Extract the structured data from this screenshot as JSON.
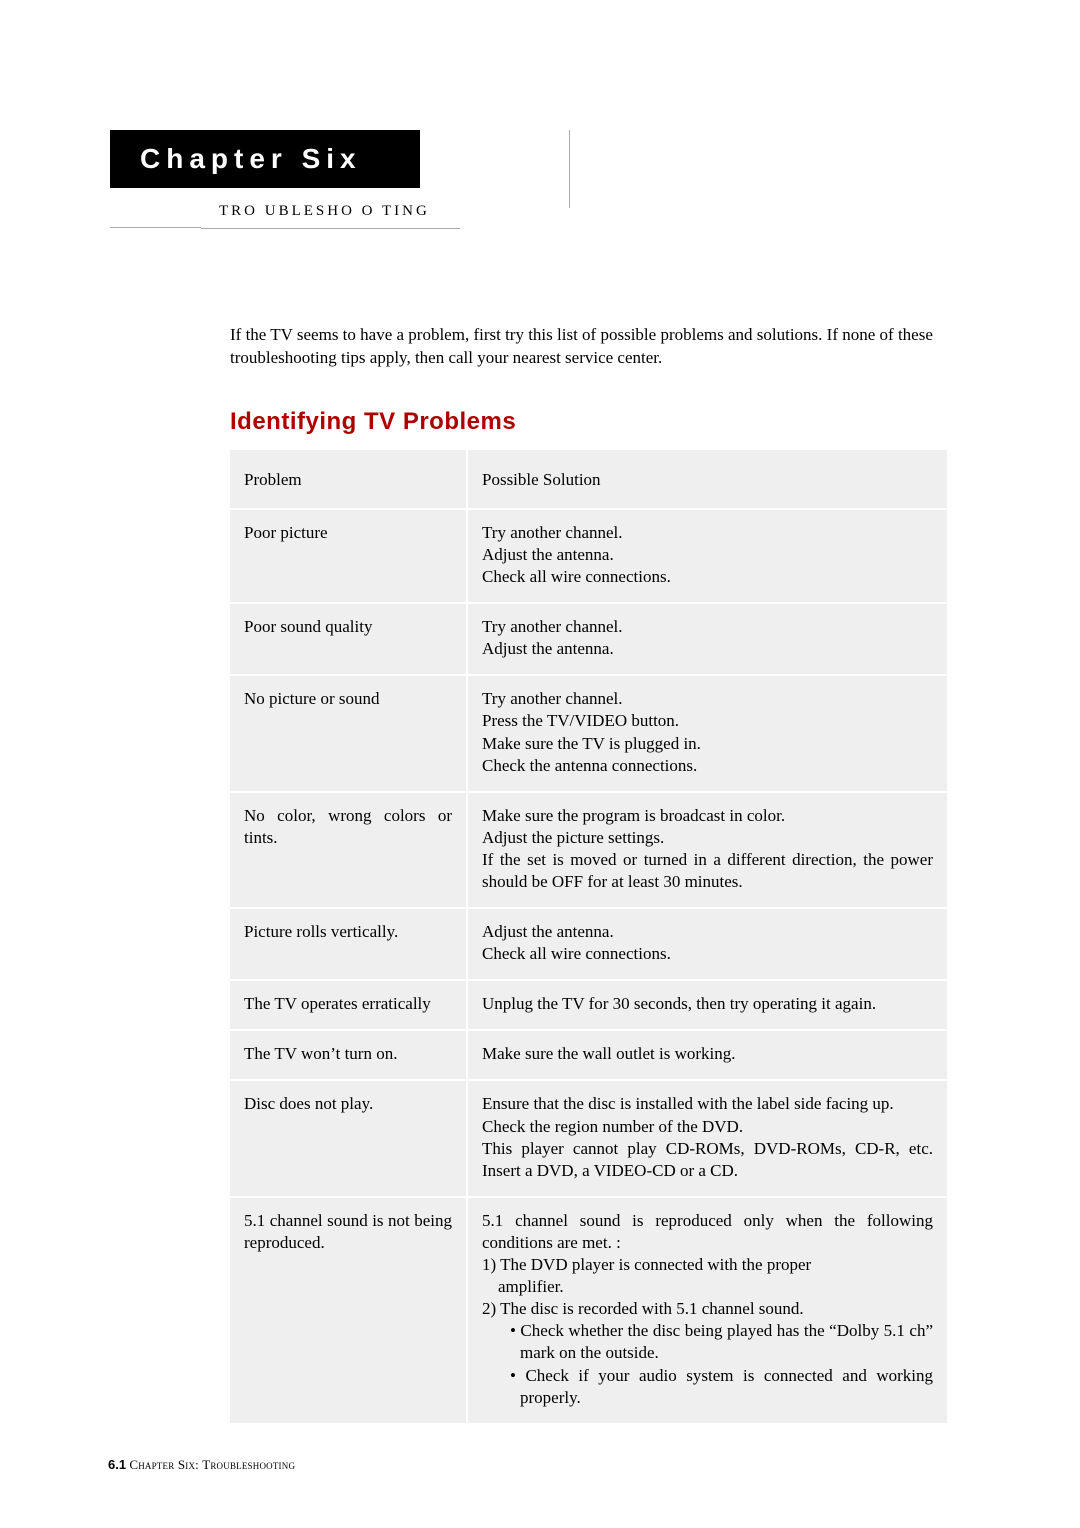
{
  "chapter": {
    "label": "Chapter Six",
    "sub": "TRO UBLESHO O TING"
  },
  "intro": "If the TV seems to have a problem, first try this list of possible problems and solutions. If none of these troubleshooting tips apply, then call your nearest service center.",
  "section_title": "Identifying TV Problems",
  "table": {
    "columns": [
      "Problem",
      "Possible Solution"
    ],
    "rows": [
      {
        "problem": "Poor picture",
        "solution": [
          "Try another channel.",
          "Adjust the antenna.",
          "Check all wire connections."
        ]
      },
      {
        "problem": "Poor sound quality",
        "solution": [
          "Try another channel.",
          "Adjust the antenna."
        ]
      },
      {
        "problem": "No picture or sound",
        "solution": [
          "Try another channel.",
          "Press the TV/VIDEO button.",
          "Make sure the TV is plugged in.",
          "Check the antenna connections."
        ]
      },
      {
        "problem": "No color, wrong colors or tints.",
        "solution": [
          "Make sure the program is broadcast in color.",
          "Adjust the picture settings.",
          "If the set is moved or turned in a different direction, the power should be OFF for at least 30 minutes."
        ]
      },
      {
        "problem": "Picture rolls vertically.",
        "solution": [
          "Adjust the antenna.",
          "Check all wire connections."
        ]
      },
      {
        "problem": "The TV operates erratically",
        "solution": [
          "Unplug the TV for 30 seconds, then try operating it again."
        ]
      },
      {
        "problem": "The TV won’t turn on.",
        "solution": [
          "Make sure the wall outlet is working."
        ]
      },
      {
        "problem": "Disc does not play.",
        "solution": [
          "Ensure that the disc is installed with the label side facing up.",
          "Check the region number of the DVD.",
          "This player cannot play CD-ROMs, DVD-ROMs, CD-R, etc. Insert a DVD, a VIDEO-CD or a CD."
        ]
      },
      {
        "problem": "5.1 channel sound is not being reproduced.",
        "solution_rich": [
          {
            "t": "5.1 channel sound is reproduced only when the following conditions are met. :",
            "indent": 0
          },
          {
            "t": "1) The DVD player is connected with the proper",
            "indent": 0
          },
          {
            "t": "amplifier.",
            "indent": 1
          },
          {
            "t": "2) The disc is recorded with 5.1 channel sound.",
            "indent": 0
          },
          {
            "t": "• Check whether the disc being played has the “Dolby 5.1 ch” mark on the outside.",
            "indent": 2
          },
          {
            "t": "• Check if your audio system is connected and working properly.",
            "indent": 2
          }
        ]
      }
    ]
  },
  "footer": {
    "pgnum": "6.1",
    "text": "Chapter Six: Troubleshooting"
  }
}
